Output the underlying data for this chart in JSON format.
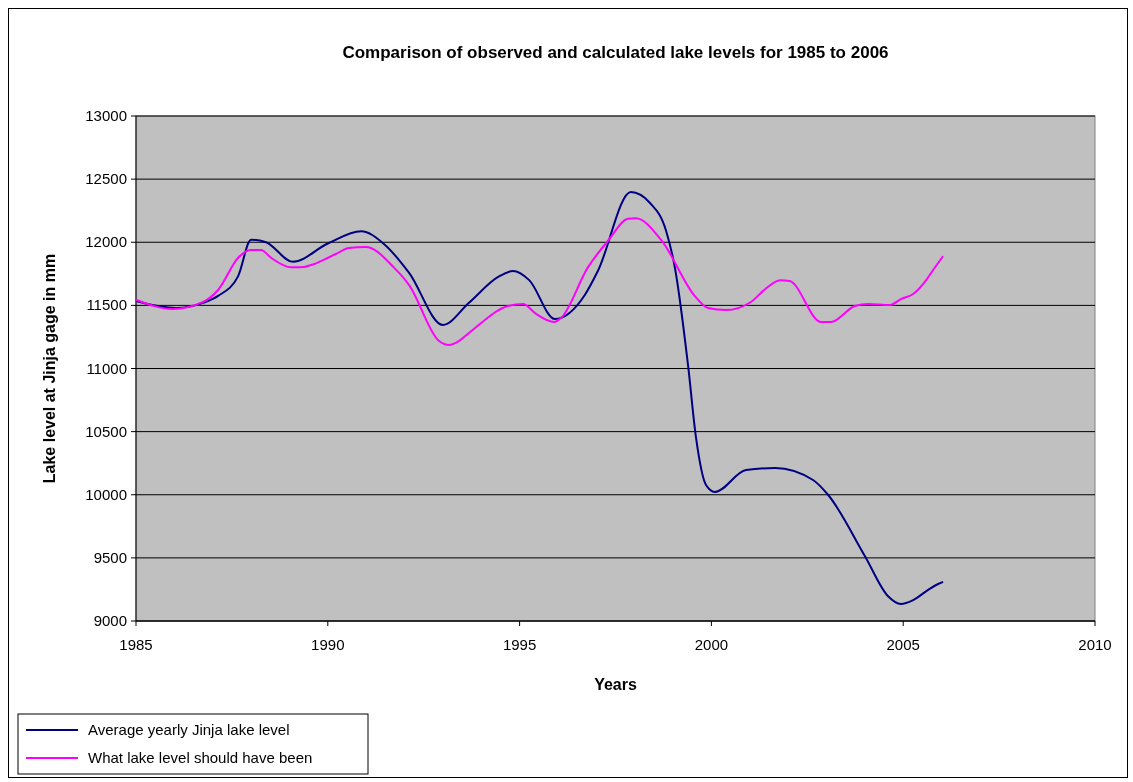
{
  "chart_data": {
    "type": "line",
    "title": "Comparison of observed and calculated lake levels for 1985 to 2006",
    "xlabel": "Years",
    "ylabel": "Lake level at Jinja gage in mm",
    "xlim": [
      1985,
      2010
    ],
    "xticks": [
      1985,
      1990,
      1995,
      2000,
      2005,
      2010
    ],
    "ylim": [
      9000,
      13000
    ],
    "yticks": [
      9000,
      9500,
      10000,
      10500,
      11000,
      11500,
      12000,
      12500,
      13000
    ],
    "grid": "y",
    "legend": "bottom left",
    "marker": "none",
    "line_style": "solid",
    "series": [
      {
        "name": "Average yearly Jinja lake level",
        "color": "#000080",
        "x": [
          1985,
          1985.57,
          1986.04,
          1986.75,
          1987.14,
          1987.66,
          1988.0,
          1988.39,
          1989.09,
          1990.0,
          1990.87,
          1991.47,
          1992.12,
          1993.0,
          1993.68,
          1994.44,
          1994.83,
          1995.25,
          1995.92,
          1996.7,
          1997.04,
          1997.9,
          1998.4,
          1998.82,
          1999.05,
          1999.39,
          1999.6,
          1999.86,
          2000.09,
          2000.9,
          2001.66,
          2002.65,
          2003.04,
          2004.0,
          2004.6,
          2004.94,
          2005.26,
          2005.65,
          2005.91,
          2006.04
        ],
        "values": [
          11535,
          11495,
          11480,
          11520,
          11575,
          11730,
          12020,
          12000,
          11845,
          11990,
          12087,
          11985,
          11757,
          11345,
          11520,
          11725,
          11772,
          11700,
          11392,
          11582,
          11772,
          12398,
          12311,
          12089,
          11796,
          11028,
          10450,
          10077,
          10022,
          10196,
          10212,
          10117,
          10000,
          9515,
          9198,
          9135,
          9166,
          9246,
          9293,
          9310
        ]
      },
      {
        "name": "What lake level should have been",
        "color": "#ff00ff",
        "x": [
          1985,
          1985.96,
          1986.75,
          1987.14,
          1987.68,
          1987.99,
          1988.26,
          1988.52,
          1989.04,
          1989.25,
          1990.21,
          1990.55,
          1990.99,
          1991.72,
          1992.12,
          1992.9,
          1993.16,
          1993.42,
          1993.68,
          1994.7,
          1995.09,
          1995.43,
          1995.9,
          1996.08,
          1996.78,
          1997.3,
          1997.83,
          1998.03,
          1998.69,
          1999.57,
          1999.91,
          2000.38,
          2001.03,
          2001.4,
          2001.79,
          2002.04,
          2002.86,
          2003.12,
          2003.74,
          2004.08,
          2004.66,
          2004.94,
          2005.26,
          2005.6,
          2005.78,
          2006.04
        ],
        "values": [
          11545,
          11471,
          11527,
          11622,
          11883,
          11939,
          11939,
          11877,
          11801,
          11801,
          11907,
          11955,
          11963,
          11801,
          11661,
          11218,
          11186,
          11218,
          11281,
          11495,
          11511,
          11432,
          11368,
          11400,
          11801,
          12010,
          12186,
          12190,
          12018,
          11573,
          11479,
          11463,
          11527,
          11628,
          11700,
          11693,
          11368,
          11368,
          11495,
          11511,
          11503,
          11550,
          11590,
          11700,
          11780,
          11890
        ]
      }
    ]
  }
}
